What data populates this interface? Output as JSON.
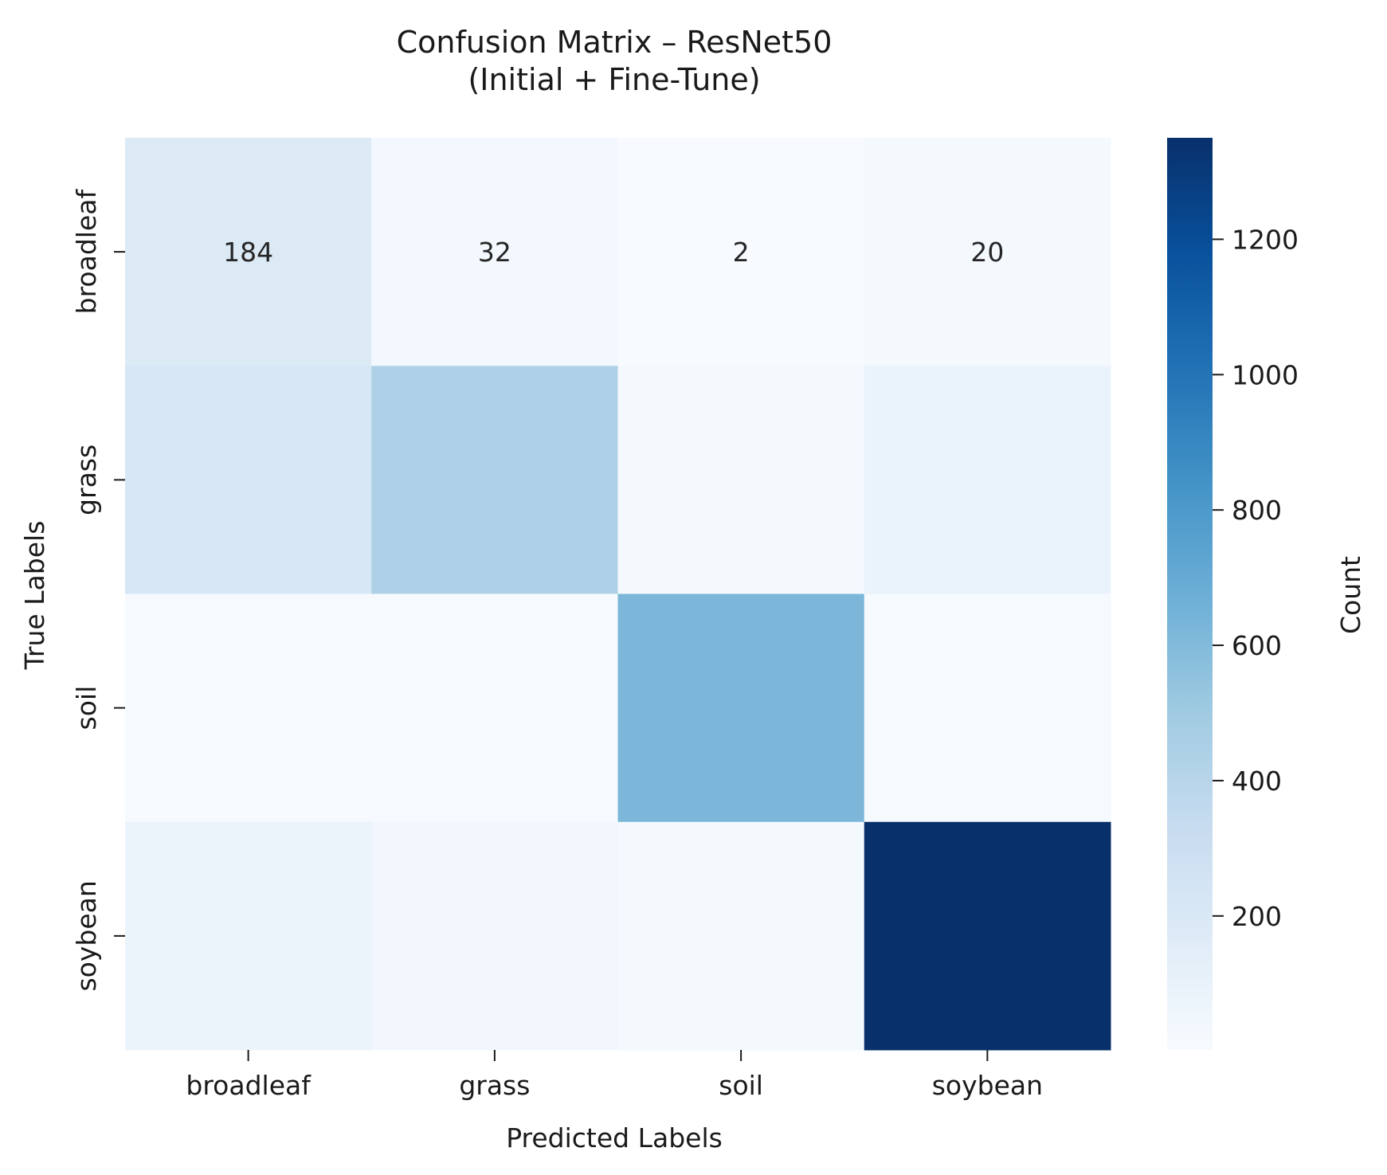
{
  "chart_data": {
    "type": "heatmap",
    "title": "Confusion Matrix – ResNet50",
    "subtitle": "(Initial + Fine-Tune)",
    "xlabel": "Predicted Labels",
    "ylabel": "True Labels",
    "x_categories": [
      "broadleaf",
      "grass",
      "soil",
      "soybean"
    ],
    "y_categories": [
      "broadleaf",
      "grass",
      "soil",
      "soybean"
    ],
    "values": [
      [
        184,
        32,
        2,
        20
      ],
      [
        210,
        440,
        20,
        90
      ],
      [
        8,
        10,
        620,
        15
      ],
      [
        80,
        40,
        25,
        1350
      ]
    ],
    "annotations": [
      [
        "184",
        "32",
        "2",
        "20"
      ],
      [
        null,
        null,
        null,
        null
      ],
      [
        null,
        null,
        null,
        null
      ],
      [
        null,
        null,
        null,
        null
      ]
    ],
    "colorbar": {
      "label": "Count",
      "min": 2,
      "max": 1350,
      "ticks": [
        200,
        400,
        600,
        800,
        1000,
        1200
      ],
      "colormap": "Blues"
    },
    "colors": {
      "cmap_low": "#f7fbff",
      "cmap_high": "#08306b",
      "annotation_dark_text": "#262626",
      "annotation_light_text": "#ffffff"
    }
  }
}
